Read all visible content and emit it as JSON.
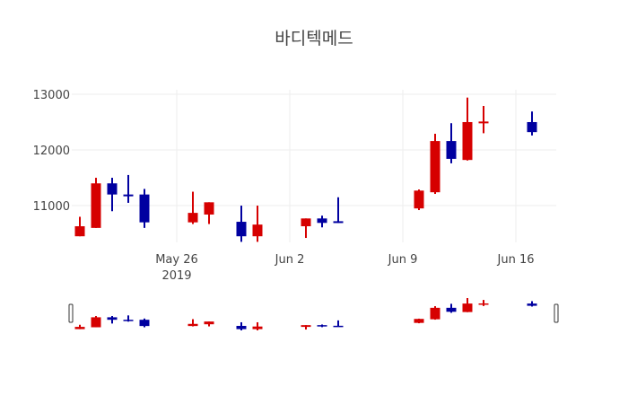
{
  "title": "바디텍메드",
  "colors": {
    "increasing": "#d60000",
    "decreasing": "#0000a0",
    "grid": "#eeeeee"
  },
  "chart_data": {
    "type": "candlestick",
    "title": "바디텍메드",
    "xlabel": "",
    "ylabel": "",
    "ylim": [
      10340,
      13080
    ],
    "xlim": [
      "2019-05-19T12:00",
      "2019-06-18T12:00"
    ],
    "grid": true,
    "legend": "none",
    "range_slider": true,
    "x_ticks": [
      {
        "date": "2019-05-26",
        "label": "May 26",
        "sublabel": "2019"
      },
      {
        "date": "2019-06-02",
        "label": "Jun 2"
      },
      {
        "date": "2019-06-09",
        "label": "Jun 9"
      },
      {
        "date": "2019-06-16",
        "label": "Jun 16"
      }
    ],
    "y_ticks": [
      11000,
      12000,
      13000
    ],
    "x": [
      "2019-05-20",
      "2019-05-21",
      "2019-05-22",
      "2019-05-23",
      "2019-05-24",
      "2019-05-27",
      "2019-05-28",
      "2019-05-30",
      "2019-05-31",
      "2019-06-03",
      "2019-06-04",
      "2019-06-05",
      "2019-06-10",
      "2019-06-11",
      "2019-06-12",
      "2019-06-13",
      "2019-06-14",
      "2019-06-17"
    ],
    "open": [
      10450,
      10600,
      11400,
      11200,
      11200,
      10700,
      10840,
      10710,
      10450,
      10630,
      10770,
      10720,
      10950,
      11240,
      12160,
      11820,
      12490,
      12500
    ],
    "high": [
      10800,
      11500,
      11500,
      11550,
      11300,
      11250,
      11060,
      11000,
      11000,
      10770,
      10820,
      11150,
      11290,
      12290,
      12480,
      12940,
      12790,
      12690
    ],
    "low": [
      10450,
      10600,
      10900,
      11050,
      10600,
      10670,
      10670,
      10350,
      10350,
      10420,
      10610,
      10690,
      10920,
      11210,
      11760,
      11810,
      12300,
      12260
    ],
    "close": [
      10630,
      11400,
      11200,
      11180,
      10700,
      10870,
      11060,
      10450,
      10660,
      10770,
      10690,
      10690,
      11270,
      12160,
      11840,
      12500,
      12510,
      12320
    ]
  }
}
